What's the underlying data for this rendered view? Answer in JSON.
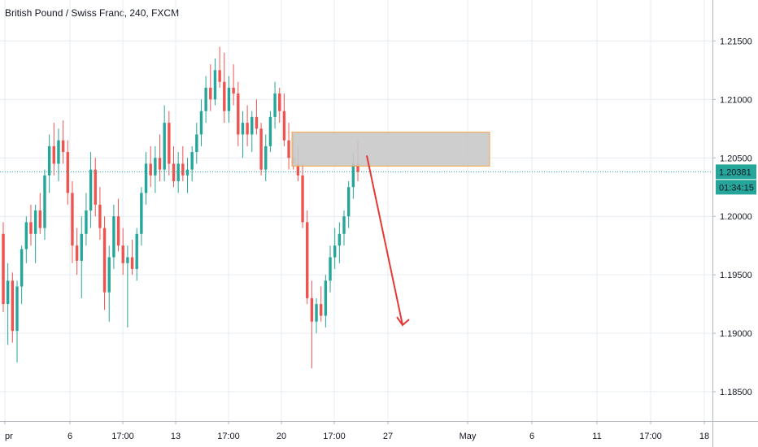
{
  "chart_data": {
    "type": "candlestick",
    "title": "British Pound / Swiss Franc, 240, FXCM",
    "ylim": [
      1.1825,
      1.2185
    ],
    "y_ticks": [
      "1.21500",
      "1.21000",
      "1.20500",
      "1.20000",
      "1.19500",
      "1.19000",
      "1.18500"
    ],
    "x_ticks": [
      "pr",
      "6",
      "17:00",
      "13",
      "17:00",
      "20",
      "17:00",
      "27",
      "May",
      "6",
      "11",
      "17:00",
      "18"
    ],
    "last_price": "1.20381",
    "countdown": "01:34:15",
    "colors": {
      "up": "#26a69a",
      "down": "#ef5350",
      "price_line": "#26a69a",
      "zone_fill": "#c9c9c9",
      "zone_border": "#f5a142",
      "arrow": "#e53935"
    },
    "zone": {
      "top": 1.2072,
      "bottom": 1.2043
    },
    "arrow": {
      "from": 1.2052,
      "to": 1.1907
    },
    "candles": [
      [
        1.1985,
        1.1995,
        1.1918,
        1.1925
      ],
      [
        1.1925,
        1.196,
        1.189,
        1.1945
      ],
      [
        1.1945,
        1.1952,
        1.1892,
        1.1902
      ],
      [
        1.1902,
        1.1945,
        1.1875,
        1.194
      ],
      [
        1.194,
        1.1975,
        1.1925,
        1.1972
      ],
      [
        1.1972,
        1.2,
        1.196,
        1.1995
      ],
      [
        1.1995,
        1.201,
        1.1975,
        1.1985
      ],
      [
        1.1985,
        1.201,
        1.196,
        1.2005
      ],
      [
        1.2005,
        1.202,
        1.1985,
        1.199
      ],
      [
        1.199,
        1.204,
        1.198,
        1.2035
      ],
      [
        1.2035,
        1.207,
        1.202,
        1.206
      ],
      [
        1.206,
        1.208,
        1.2035,
        1.2045
      ],
      [
        1.2045,
        1.2075,
        1.203,
        1.2065
      ],
      [
        1.2065,
        1.2082,
        1.2045,
        1.2055
      ],
      [
        1.2055,
        1.2065,
        1.201,
        1.202
      ],
      [
        1.202,
        1.203,
        1.196,
        1.1975
      ],
      [
        1.1975,
        1.199,
        1.195,
        1.1962
      ],
      [
        1.1962,
        1.2,
        1.193,
        1.1985
      ],
      [
        1.1985,
        1.202,
        1.1975,
        1.2005
      ],
      [
        1.2005,
        1.2055,
        1.199,
        1.204
      ],
      [
        1.204,
        1.205,
        1.2,
        1.201
      ],
      [
        1.201,
        1.2025,
        1.198,
        1.199
      ],
      [
        1.199,
        1.2,
        1.192,
        1.1935
      ],
      [
        1.1935,
        1.1975,
        1.191,
        1.1965
      ],
      [
        1.1965,
        1.201,
        1.1955,
        1.2
      ],
      [
        1.2,
        1.2015,
        1.197,
        1.1975
      ],
      [
        1.1975,
        1.199,
        1.195,
        1.196
      ],
      [
        1.196,
        1.1975,
        1.1905,
        1.1965
      ],
      [
        1.1965,
        1.198,
        1.195,
        1.1955
      ],
      [
        1.1955,
        1.199,
        1.1945,
        1.1985
      ],
      [
        1.1985,
        1.2025,
        1.1975,
        1.202
      ],
      [
        1.202,
        1.2055,
        1.201,
        1.2045
      ],
      [
        1.2045,
        1.206,
        1.2025,
        1.2035
      ],
      [
        1.2035,
        1.206,
        1.202,
        1.205
      ],
      [
        1.205,
        1.207,
        1.203,
        1.204
      ],
      [
        1.204,
        1.2095,
        1.203,
        1.208
      ],
      [
        1.208,
        1.209,
        1.2035,
        1.2045
      ],
      [
        1.2045,
        1.206,
        1.2025,
        1.203
      ],
      [
        1.203,
        1.2055,
        1.202,
        1.2045
      ],
      [
        1.2045,
        1.206,
        1.203,
        1.2035
      ],
      [
        1.2035,
        1.205,
        1.202,
        1.204
      ],
      [
        1.204,
        1.206,
        1.203,
        1.2055
      ],
      [
        1.2055,
        1.208,
        1.2045,
        1.207
      ],
      [
        1.207,
        1.21,
        1.206,
        1.209
      ],
      [
        1.209,
        1.212,
        1.208,
        1.211
      ],
      [
        1.211,
        1.213,
        1.209,
        1.21
      ],
      [
        1.21,
        1.2135,
        1.2095,
        1.2125
      ],
      [
        1.2125,
        1.2145,
        1.211,
        1.2115
      ],
      [
        1.2115,
        1.214,
        1.208,
        1.209
      ],
      [
        1.209,
        1.212,
        1.208,
        1.211
      ],
      [
        1.211,
        1.213,
        1.2095,
        1.2105
      ],
      [
        1.2105,
        1.2115,
        1.206,
        1.207
      ],
      [
        1.207,
        1.209,
        1.205,
        1.208
      ],
      [
        1.208,
        1.2095,
        1.206,
        1.207
      ],
      [
        1.207,
        1.209,
        1.2055,
        1.2085
      ],
      [
        1.2085,
        1.21,
        1.207,
        1.2075
      ],
      [
        1.2075,
        1.208,
        1.2035,
        1.204
      ],
      [
        1.204,
        1.207,
        1.203,
        1.206
      ],
      [
        1.206,
        1.209,
        1.2055,
        1.2085
      ],
      [
        1.2085,
        1.2115,
        1.2075,
        1.2105
      ],
      [
        1.2105,
        1.211,
        1.208,
        1.209
      ],
      [
        1.209,
        1.2105,
        1.206,
        1.2065
      ],
      [
        1.2065,
        1.208,
        1.204,
        1.205
      ],
      [
        1.205,
        1.207,
        1.204,
        1.2045
      ],
      [
        1.2045,
        1.206,
        1.203,
        1.2035
      ],
      [
        1.2035,
        1.2045,
        1.199,
        1.1995
      ],
      [
        1.1995,
        1.2005,
        1.1925,
        1.193
      ],
      [
        1.193,
        1.1945,
        1.187,
        1.191
      ],
      [
        1.191,
        1.193,
        1.19,
        1.1925
      ],
      [
        1.1925,
        1.194,
        1.191,
        1.1915
      ],
      [
        1.1915,
        1.195,
        1.1905,
        1.1945
      ],
      [
        1.1945,
        1.1975,
        1.1935,
        1.1965
      ],
      [
        1.1965,
        1.199,
        1.1955,
        1.1975
      ],
      [
        1.1975,
        1.1995,
        1.196,
        1.1985
      ],
      [
        1.1985,
        1.2005,
        1.1975,
        1.2
      ],
      [
        1.2,
        1.203,
        1.199,
        1.2025
      ],
      [
        1.2025,
        1.2055,
        1.2015,
        1.2045
      ],
      [
        1.2045,
        1.2065,
        1.203,
        1.2038
      ]
    ]
  }
}
